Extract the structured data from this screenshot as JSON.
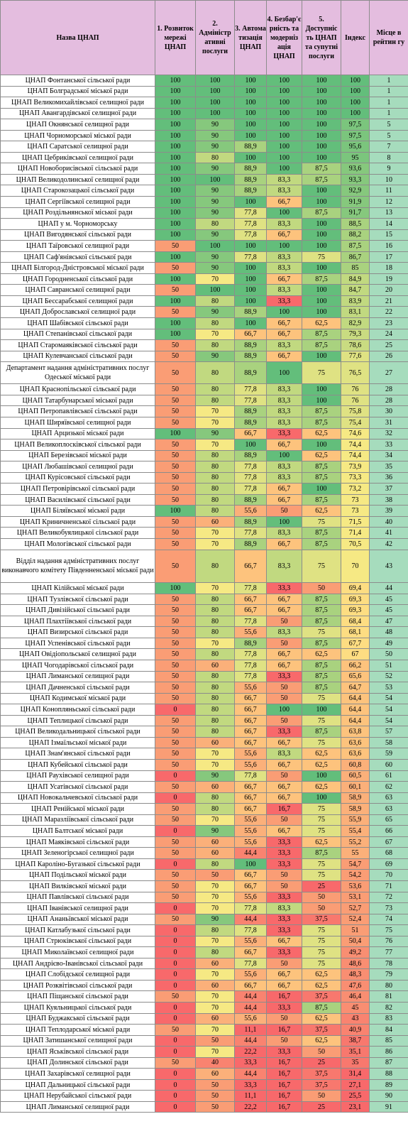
{
  "colors": {
    "header_bg": "#e4bddf",
    "rank_bg": "#a6dcbd",
    "scale": {
      "100": "#63be7b",
      "95": "#7bc57d",
      "90": "#86c87d",
      "89": "#94cc7e",
      "85": "#a9d27f",
      "80": "#c1d980",
      "78": "#c9db81",
      "75": "#dfe283",
      "70": "#f6e984",
      "67": "#fddd82",
      "62": "#fdc37d",
      "55": "#fbb07a",
      "50": "#fa9d75",
      "45": "#f98e72",
      "40": "#f98370",
      "35": "#f8786e",
      "20": "#f8696b"
    }
  },
  "headers": {
    "name": "Назва ЦНАП",
    "c1": "1. Розвиток мережі ЦНАП",
    "c2": "2. Адміністр ативні послуги",
    "c3": "3. Автома тизація ЦНАП",
    "c4": "4. Безбар'є рність та модерніз ація ЦНАП",
    "c5": "5. Доступніс ть ЦНАП та супутні послуги",
    "index": "Індекс",
    "rank": "Місце в рейтин гу"
  },
  "rows": [
    {
      "name": "ЦНАП Фонтанської сільської ради",
      "c1": "100",
      "c2": "100",
      "c3": "100",
      "c4": "100",
      "c5": "100",
      "index": "100",
      "rank": "1"
    },
    {
      "name": "ЦНАП Болградської міської ради",
      "c1": "100",
      "c2": "100",
      "c3": "100",
      "c4": "100",
      "c5": "100",
      "index": "100",
      "rank": "1"
    },
    {
      "name": "ЦНАП Великомихайлівської селищної ради",
      "c1": "100",
      "c2": "100",
      "c3": "100",
      "c4": "100",
      "c5": "100",
      "index": "100",
      "rank": "1"
    },
    {
      "name": "ЦНАП Авангардівської селищної ради",
      "c1": "100",
      "c2": "100",
      "c3": "100",
      "c4": "100",
      "c5": "100",
      "index": "100",
      "rank": "1"
    },
    {
      "name": "ЦНАП Окнянської селищної ради",
      "c1": "100",
      "c2": "90",
      "c3": "100",
      "c4": "100",
      "c5": "100",
      "index": "97,5",
      "rank": "5"
    },
    {
      "name": "ЦНАП Чорноморської міської ради",
      "c1": "100",
      "c2": "90",
      "c3": "100",
      "c4": "100",
      "c5": "100",
      "index": "97,5",
      "rank": "5"
    },
    {
      "name": "ЦНАП Саратської селищної ради",
      "c1": "100",
      "c2": "90",
      "c3": "88,9",
      "c4": "100",
      "c5": "100",
      "index": "95,6",
      "rank": "7"
    },
    {
      "name": "ЦНАП Цебриківської селищної ради",
      "c1": "100",
      "c2": "80",
      "c3": "100",
      "c4": "100",
      "c5": "100",
      "index": "95",
      "rank": "8"
    },
    {
      "name": "ЦНАП Новоборисівської сільської ради",
      "c1": "100",
      "c2": "90",
      "c3": "88,9",
      "c4": "100",
      "c5": "87,5",
      "index": "93,6",
      "rank": "9"
    },
    {
      "name": "ЦНАП Великодолинської селищної ради",
      "c1": "100",
      "c2": "100",
      "c3": "88,9",
      "c4": "83,3",
      "c5": "87,5",
      "index": "93,3",
      "rank": "10"
    },
    {
      "name": "ЦНАП Старокозацької сільської ради",
      "c1": "100",
      "c2": "90",
      "c3": "88,9",
      "c4": "83,3",
      "c5": "100",
      "index": "92,9",
      "rank": "11"
    },
    {
      "name": "ЦНАП Сергіївської селищної ради",
      "c1": "100",
      "c2": "90",
      "c3": "100",
      "c4": "66,7",
      "c5": "100",
      "index": "91,9",
      "rank": "12"
    },
    {
      "name": "ЦНАП Роздільнянської міської ради",
      "c1": "100",
      "c2": "90",
      "c3": "77,8",
      "c4": "100",
      "c5": "87,5",
      "index": "91,7",
      "rank": "13"
    },
    {
      "name": "ЦНАП у м. Чорноморську",
      "c1": "100",
      "c2": "80",
      "c3": "77,8",
      "c4": "83,3",
      "c5": "100",
      "index": "88,5",
      "rank": "14"
    },
    {
      "name": "ЦНАП Вигодянської сільської ради",
      "c1": "100",
      "c2": "90",
      "c3": "77,8",
      "c4": "66,7",
      "c5": "100",
      "index": "88,2",
      "rank": "15"
    },
    {
      "name": "ЦНАП Таїровської селищної ради",
      "c1": "50",
      "c2": "100",
      "c3": "100",
      "c4": "100",
      "c5": "100",
      "index": "87,5",
      "rank": "16"
    },
    {
      "name": "ЦНАП Саф'янівської сільської ради",
      "c1": "100",
      "c2": "90",
      "c3": "77,8",
      "c4": "83,3",
      "c5": "75",
      "index": "86,7",
      "rank": "17"
    },
    {
      "name": "ЦНАП Білгород-Дністровської міської ради",
      "c1": "50",
      "c2": "90",
      "c3": "100",
      "c4": "83,3",
      "c5": "100",
      "index": "85",
      "rank": "18"
    },
    {
      "name": "ЦНАП Городненської сільської ради",
      "c1": "100",
      "c2": "70",
      "c3": "100",
      "c4": "66,7",
      "c5": "87,5",
      "index": "84,9",
      "rank": "19"
    },
    {
      "name": "ЦНАП Савранської селищної ради",
      "c1": "50",
      "c2": "100",
      "c3": "100",
      "c4": "83,3",
      "c5": "100",
      "index": "84,7",
      "rank": "20"
    },
    {
      "name": "ЦНАП Бессарабської селищної ради",
      "c1": "100",
      "c2": "80",
      "c3": "100",
      "c4": "33,3",
      "c5": "100",
      "index": "83,9",
      "rank": "21"
    },
    {
      "name": "ЦНАП Доброславської селищної ради",
      "c1": "50",
      "c2": "90",
      "c3": "88,9",
      "c4": "100",
      "c5": "100",
      "index": "83,1",
      "rank": "22"
    },
    {
      "name": "ЦНАП Шабівської сільської ради",
      "c1": "100",
      "c2": "80",
      "c3": "100",
      "c4": "66,7",
      "c5": "62,5",
      "index": "82,9",
      "rank": "23"
    },
    {
      "name": "ЦНАП Степанівської сільської ради",
      "c1": "100",
      "c2": "70",
      "c3": "66,7",
      "c4": "66,7",
      "c5": "87,5",
      "index": "79,3",
      "rank": "24"
    },
    {
      "name": "ЦНАП Старомаяківської сільської ради",
      "c1": "50",
      "c2": "80",
      "c3": "88,9",
      "c4": "83,3",
      "c5": "87,5",
      "index": "78,6",
      "rank": "25"
    },
    {
      "name": "ЦНАП Кулевчанської сільської ради",
      "c1": "50",
      "c2": "90",
      "c3": "88,9",
      "c4": "66,7",
      "c5": "100",
      "index": "77,6",
      "rank": "26"
    },
    {
      "name": "Департамент надання адміністративних послуг Одеської міської ради",
      "c1": "50",
      "c2": "80",
      "c3": "88,9",
      "c4": "100",
      "c5": "75",
      "index": "76,5",
      "rank": "27",
      "tall": 2
    },
    {
      "name": "ЦНАП Краснопільської сільської ради",
      "c1": "50",
      "c2": "80",
      "c3": "77,8",
      "c4": "83,3",
      "c5": "100",
      "index": "76",
      "rank": "28"
    },
    {
      "name": "ЦНАП Татарбунарської міської ради",
      "c1": "50",
      "c2": "80",
      "c3": "77,8",
      "c4": "83,3",
      "c5": "100",
      "index": "76",
      "rank": "28"
    },
    {
      "name": "ЦНАП Петропавлівської сільської ради",
      "c1": "50",
      "c2": "70",
      "c3": "88,9",
      "c4": "83,3",
      "c5": "87,5",
      "index": "75,8",
      "rank": "30"
    },
    {
      "name": "ЦНАП Ширяївської селищної ради",
      "c1": "50",
      "c2": "70",
      "c3": "88,9",
      "c4": "83,3",
      "c5": "87,5",
      "index": "75,4",
      "rank": "31"
    },
    {
      "name": "ЦНАП Арцизької міської ради",
      "c1": "100",
      "c2": "90",
      "c3": "66,7",
      "c4": "33,3",
      "c5": "62,5",
      "index": "74,6",
      "rank": "32"
    },
    {
      "name": "ЦНАП Великоплосківської сільської ради",
      "c1": "50",
      "c2": "70",
      "c3": "100",
      "c4": "66,7",
      "c5": "100",
      "index": "74,4",
      "rank": "33"
    },
    {
      "name": "ЦНАП Березівської міської ради",
      "c1": "50",
      "c2": "80",
      "c3": "88,9",
      "c4": "100",
      "c5": "62,5",
      "index": "74,4",
      "rank": "34"
    },
    {
      "name": "ЦНАП Любашівської селищної ради",
      "c1": "50",
      "c2": "80",
      "c3": "77,8",
      "c4": "83,3",
      "c5": "87,5",
      "index": "73,9",
      "rank": "35"
    },
    {
      "name": "ЦНАП Курісовської сільської ради",
      "c1": "50",
      "c2": "80",
      "c3": "77,8",
      "c4": "83,3",
      "c5": "87,5",
      "index": "73,3",
      "rank": "36"
    },
    {
      "name": "ЦНАП Петровірівської сільської ради",
      "c1": "50",
      "c2": "80",
      "c3": "77,8",
      "c4": "66,7",
      "c5": "100",
      "index": "73,2",
      "rank": "37"
    },
    {
      "name": "ЦНАП Василівської сільської ради",
      "c1": "50",
      "c2": "80",
      "c3": "88,9",
      "c4": "66,7",
      "c5": "87,5",
      "index": "73",
      "rank": "38"
    },
    {
      "name": "ЦНАП Біляївської міської ради",
      "c1": "100",
      "c2": "80",
      "c3": "55,6",
      "c4": "50",
      "c5": "62,5",
      "index": "73",
      "rank": "39"
    },
    {
      "name": "ЦНАП Криничненської сільської ради",
      "c1": "50",
      "c2": "60",
      "c3": "88,9",
      "c4": "100",
      "c5": "75",
      "index": "71,5",
      "rank": "40"
    },
    {
      "name": "ЦНАП Великобуялицької сільської ради",
      "c1": "50",
      "c2": "70",
      "c3": "77,8",
      "c4": "83,3",
      "c5": "87,5",
      "index": "71,4",
      "rank": "41"
    },
    {
      "name": "ЦНАП Мологівської сільської ради",
      "c1": "50",
      "c2": "70",
      "c3": "88,9",
      "c4": "66,7",
      "c5": "87,5",
      "index": "70,5",
      "rank": "42"
    },
    {
      "name": "Відділ надання адміністративних послуг виконавчого комітету Південненської міської ради",
      "c1": "50",
      "c2": "80",
      "c3": "66,7",
      "c4": "83,3",
      "c5": "75",
      "index": "70",
      "rank": "43",
      "tall": 3
    },
    {
      "name": "ЦНАП Кілійської міської ради",
      "c1": "100",
      "c2": "70",
      "c3": "77,8",
      "c4": "33,3",
      "c5": "50",
      "index": "69,4",
      "rank": "44"
    },
    {
      "name": "ЦНАП Тузлівської сільської ради",
      "c1": "50",
      "c2": "80",
      "c3": "66,7",
      "c4": "66,7",
      "c5": "87,5",
      "index": "69,3",
      "rank": "45"
    },
    {
      "name": "ЦНАП Дивізійської сільської ради",
      "c1": "50",
      "c2": "80",
      "c3": "66,7",
      "c4": "66,7",
      "c5": "87,5",
      "index": "69,3",
      "rank": "45"
    },
    {
      "name": "ЦНАП Плахтіївської сільської ради",
      "c1": "50",
      "c2": "80",
      "c3": "77,8",
      "c4": "50",
      "c5": "87,5",
      "index": "68,4",
      "rank": "47"
    },
    {
      "name": "ЦНАП Визирської сільської ради",
      "c1": "50",
      "c2": "80",
      "c3": "55,6",
      "c4": "83,3",
      "c5": "75",
      "index": "68,1",
      "rank": "48"
    },
    {
      "name": "ЦНАП Успенівської сільської ради",
      "c1": "50",
      "c2": "70",
      "c3": "88,9",
      "c4": "50",
      "c5": "87,5",
      "index": "67,7",
      "rank": "49"
    },
    {
      "name": "ЦНАП Овідіопольської селищної ради",
      "c1": "50",
      "c2": "80",
      "c3": "77,8",
      "c4": "66,7",
      "c5": "62,5",
      "index": "67",
      "rank": "50"
    },
    {
      "name": "ЦНАП Чогодарівської сільської ради",
      "c1": "50",
      "c2": "60",
      "c3": "77,8",
      "c4": "66,7",
      "c5": "87,5",
      "index": "66,2",
      "rank": "51"
    },
    {
      "name": "ЦНАП Лиманської селищної ради",
      "c1": "50",
      "c2": "80",
      "c3": "77,8",
      "c4": "33,3",
      "c5": "87,5",
      "index": "65,6",
      "rank": "52"
    },
    {
      "name": "ЦНАП Дачненської сільської ради",
      "c1": "50",
      "c2": "80",
      "c3": "55,6",
      "c4": "50",
      "c5": "87,5",
      "index": "64,7",
      "rank": "53"
    },
    {
      "name": "ЦНАП Кодимської міської ради",
      "c1": "50",
      "c2": "80",
      "c3": "66,7",
      "c4": "50",
      "c5": "75",
      "index": "64,4",
      "rank": "54"
    },
    {
      "name": "ЦНАП Конопляньської сільської ради",
      "c1": "0",
      "c2": "80",
      "c3": "66,7",
      "c4": "100",
      "c5": "100",
      "index": "64,4",
      "rank": "54"
    },
    {
      "name": "ЦНАП Теплицької сільської ради",
      "c1": "50",
      "c2": "80",
      "c3": "66,7",
      "c4": "50",
      "c5": "75",
      "index": "64,4",
      "rank": "54"
    },
    {
      "name": "ЦНАП Великодальницької сільської ради",
      "c1": "50",
      "c2": "80",
      "c3": "66,7",
      "c4": "33,3",
      "c5": "87,5",
      "index": "63,8",
      "rank": "57"
    },
    {
      "name": "ЦНАП Ізмаїльської міської ради",
      "c1": "50",
      "c2": "60",
      "c3": "66,7",
      "c4": "66,7",
      "c5": "75",
      "index": "63,6",
      "rank": "58"
    },
    {
      "name": "ЦНАП Знам'янської сільської ради",
      "c1": "50",
      "c2": "70",
      "c3": "55,6",
      "c4": "83,3",
      "c5": "62,5",
      "index": "63,6",
      "rank": "59"
    },
    {
      "name": "ЦНАП Кубейської сільської ради",
      "c1": "50",
      "c2": "70",
      "c3": "55,6",
      "c4": "66,7",
      "c5": "62,5",
      "index": "60,8",
      "rank": "60"
    },
    {
      "name": "ЦНАП Раухівської селищної ради",
      "c1": "0",
      "c2": "90",
      "c3": "77,8",
      "c4": "50",
      "c5": "100",
      "index": "60,5",
      "rank": "61"
    },
    {
      "name": "ЦНАП Усатівської сільської ради",
      "c1": "50",
      "c2": "60",
      "c3": "66,7",
      "c4": "66,7",
      "c5": "62,5",
      "index": "60,1",
      "rank": "62"
    },
    {
      "name": "ЦНАП Новокальчевської сільської ради",
      "c1": "0",
      "c2": "80",
      "c3": "66,7",
      "c4": "66,7",
      "c5": "100",
      "index": "58,9",
      "rank": "63"
    },
    {
      "name": "ЦНАП Ренійської міської ради",
      "c1": "50",
      "c2": "80",
      "c3": "66,7",
      "c4": "16,7",
      "c5": "75",
      "index": "58,9",
      "rank": "63"
    },
    {
      "name": "ЦНАП Маразліївської сільської ради",
      "c1": "50",
      "c2": "70",
      "c3": "55,6",
      "c4": "50",
      "c5": "75",
      "index": "55,9",
      "rank": "65"
    },
    {
      "name": "ЦНАП Балтської міської ради",
      "c1": "0",
      "c2": "90",
      "c3": "55,6",
      "c4": "66,7",
      "c5": "75",
      "index": "55,4",
      "rank": "66"
    },
    {
      "name": "ЦНАП Маяківської сільської ради",
      "c1": "50",
      "c2": "60",
      "c3": "55,6",
      "c4": "33,3",
      "c5": "62,5",
      "index": "55,2",
      "rank": "67"
    },
    {
      "name": "ЦНАП Зеленогірської селищної ради",
      "c1": "50",
      "c2": "60",
      "c3": "44,4",
      "c4": "33,3",
      "c5": "87,5",
      "index": "55",
      "rank": "68"
    },
    {
      "name": "ЦНАП Кароліно-Бугазької сільської ради",
      "c1": "0",
      "c2": "80",
      "c3": "100",
      "c4": "33,3",
      "c5": "75",
      "index": "54,7",
      "rank": "69"
    },
    {
      "name": "ЦНАП Подільської міської ради",
      "c1": "50",
      "c2": "50",
      "c3": "66,7",
      "c4": "50",
      "c5": "75",
      "index": "54,2",
      "rank": "70"
    },
    {
      "name": "ЦНАП Вилківської міської ради",
      "c1": "50",
      "c2": "70",
      "c3": "66,7",
      "c4": "50",
      "c5": "25",
      "index": "53,6",
      "rank": "71"
    },
    {
      "name": "ЦНАП Павлівської сільської ради",
      "c1": "50",
      "c2": "70",
      "c3": "55,6",
      "c4": "33,3",
      "c5": "50",
      "index": "53,1",
      "rank": "72"
    },
    {
      "name": "ЦНАП Іванівської селищної ради",
      "c1": "0",
      "c2": "70",
      "c3": "77,8",
      "c4": "83,3",
      "c5": "50",
      "index": "52,7",
      "rank": "73"
    },
    {
      "name": "ЦНАП Ананьївської міської ради",
      "c1": "50",
      "c2": "90",
      "c3": "44,4",
      "c4": "33,3",
      "c5": "37,5",
      "index": "52,4",
      "rank": "74"
    },
    {
      "name": "ЦНАП Катлабузької сільської ради",
      "c1": "0",
      "c2": "80",
      "c3": "77,8",
      "c4": "33,3",
      "c5": "75",
      "index": "51",
      "rank": "75"
    },
    {
      "name": "ЦНАП Стрюківської сільської ради",
      "c1": "0",
      "c2": "70",
      "c3": "55,6",
      "c4": "66,7",
      "c5": "75",
      "index": "50,4",
      "rank": "76"
    },
    {
      "name": "ЦНАП Миколаївської селищної ради",
      "c1": "0",
      "c2": "80",
      "c3": "66,7",
      "c4": "33,3",
      "c5": "75",
      "index": "49,2",
      "rank": "77"
    },
    {
      "name": "ЦНАП Андрієво-Іванівської сільської ради",
      "c1": "0",
      "c2": "60",
      "c3": "77,8",
      "c4": "50",
      "c5": "75",
      "index": "48,6",
      "rank": "78"
    },
    {
      "name": "ЦНАП Слобідської селищної ради",
      "c1": "0",
      "c2": "70",
      "c3": "55,6",
      "c4": "66,7",
      "c5": "62,5",
      "index": "48,3",
      "rank": "79"
    },
    {
      "name": "ЦНАП Розквітівської сільської ради",
      "c1": "0",
      "c2": "60",
      "c3": "66,7",
      "c4": "66,7",
      "c5": "62,5",
      "index": "47,6",
      "rank": "80"
    },
    {
      "name": "ЦНАП Піщанської сільської ради",
      "c1": "50",
      "c2": "70",
      "c3": "44,4",
      "c4": "16,7",
      "c5": "37,5",
      "index": "46,4",
      "rank": "81"
    },
    {
      "name": "ЦНАП Куяльницької сільської ради",
      "c1": "0",
      "c2": "70",
      "c3": "44,4",
      "c4": "33,3",
      "c5": "87,5",
      "index": "45",
      "rank": "82"
    },
    {
      "name": "ЦНАП Буджакської сільської ради",
      "c1": "0",
      "c2": "60",
      "c3": "55,6",
      "c4": "50",
      "c5": "62,5",
      "index": "43",
      "rank": "83"
    },
    {
      "name": "ЦНАП Теплодарської міської ради",
      "c1": "50",
      "c2": "70",
      "c3": "11,1",
      "c4": "16,7",
      "c5": "37,5",
      "index": "40,9",
      "rank": "84"
    },
    {
      "name": "ЦНАП Затишанської селищної ради",
      "c1": "0",
      "c2": "50",
      "c3": "44,4",
      "c4": "50",
      "c5": "62,5",
      "index": "38,7",
      "rank": "85"
    },
    {
      "name": "ЦНАП Яськівської сільської ради",
      "c1": "0",
      "c2": "70",
      "c3": "22,2",
      "c4": "33,3",
      "c5": "50",
      "index": "35,1",
      "rank": "86"
    },
    {
      "name": "ЦНАП Долинської сільської ради",
      "c1": "50",
      "c2": "40",
      "c3": "33,3",
      "c4": "16,7",
      "c5": "25",
      "index": "35",
      "rank": "87"
    },
    {
      "name": "ЦНАП Захарівської селищної ради",
      "c1": "0",
      "c2": "60",
      "c3": "44,4",
      "c4": "16,7",
      "c5": "37,5",
      "index": "31,4",
      "rank": "88"
    },
    {
      "name": "ЦНАП Дальницької сільської ради",
      "c1": "0",
      "c2": "50",
      "c3": "33,3",
      "c4": "16,7",
      "c5": "37,5",
      "index": "27,1",
      "rank": "89"
    },
    {
      "name": "ЦНАП Нерубайської сільської ради",
      "c1": "0",
      "c2": "50",
      "c3": "11,1",
      "c4": "16,7",
      "c5": "50",
      "index": "25,5",
      "rank": "90"
    },
    {
      "name": "ЦНАП Лиманської селищної ради",
      "c1": "0",
      "c2": "50",
      "c3": "22,2",
      "c4": "16,7",
      "c5": "25",
      "index": "23,1",
      "rank": "91"
    }
  ]
}
